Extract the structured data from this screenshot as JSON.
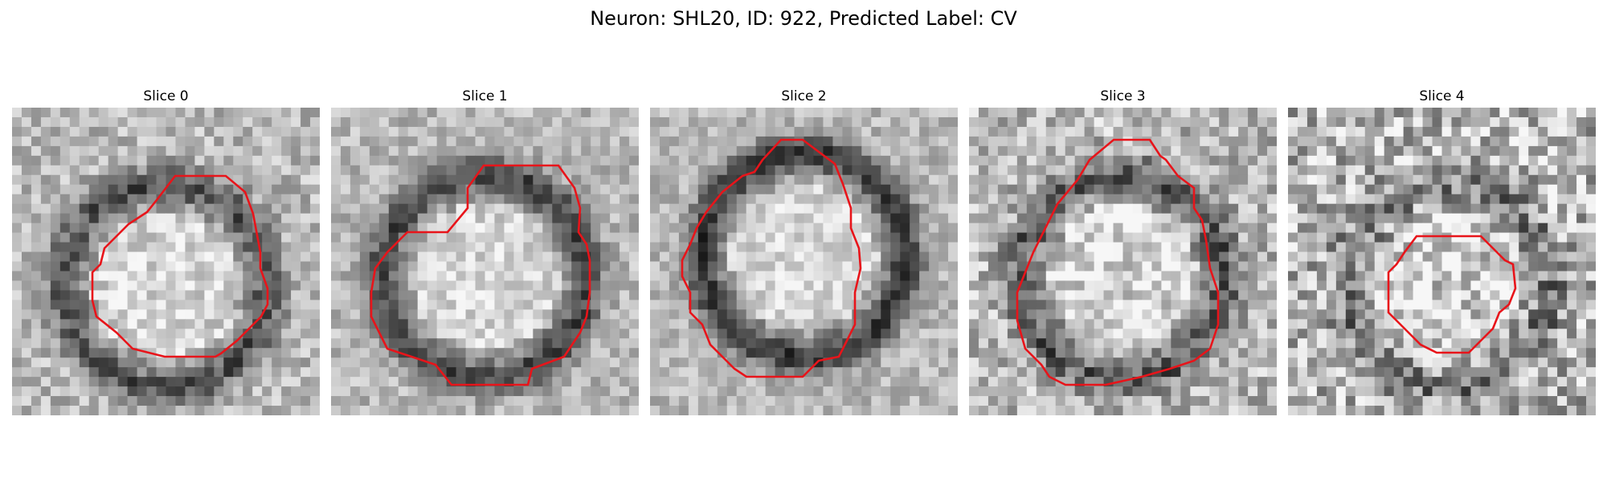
{
  "figure": {
    "title": "Neuron: SHL20, ID: 922, Predicted Label: CV",
    "contour_color": "#e8141a",
    "panels": [
      {
        "title": "Slice 0",
        "seed": 11,
        "bright_center": [
          0.5,
          0.58
        ],
        "dark_ring": 0.4,
        "noise": 0.35
      },
      {
        "title": "Slice 1",
        "seed": 23,
        "bright_center": [
          0.5,
          0.55
        ],
        "dark_ring": 0.45,
        "noise": 0.3
      },
      {
        "title": "Slice 2",
        "seed": 37,
        "bright_center": [
          0.5,
          0.48
        ],
        "dark_ring": 0.5,
        "noise": 0.28
      },
      {
        "title": "Slice 3",
        "seed": 41,
        "bright_center": [
          0.5,
          0.55
        ],
        "dark_ring": 0.38,
        "noise": 0.45
      },
      {
        "title": "Slice 4",
        "seed": 53,
        "bright_center": [
          0.52,
          0.58
        ],
        "dark_ring": 0.25,
        "noise": 0.6
      }
    ]
  }
}
